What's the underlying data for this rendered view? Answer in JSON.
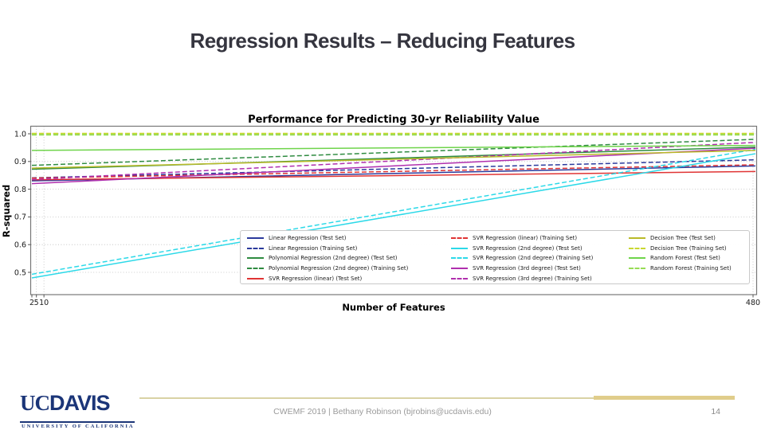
{
  "slide": {
    "title": "Regression Results – Reducing Features",
    "footer": {
      "text": "CWEMF 2019  |  Bethany Robinson (bjrobins@ucdavis.edu)",
      "page_number": "14"
    },
    "logo": {
      "uc": "UC",
      "davis": "DAVIS",
      "subtitle": "UNIVERSITY OF CALIFORNIA",
      "navy": "#1b3578"
    },
    "accent_gold_thin": "#d9d2a4",
    "accent_gold_thick": "#e0cd8b"
  },
  "chart_data": {
    "type": "line",
    "title": "Performance for Predicting 30-yr Reliability Value",
    "xlabel": "Number of Features",
    "ylabel": "R-squared",
    "xlim": [
      2,
      480
    ],
    "ylim": [
      0.45,
      1.03
    ],
    "xticks": [
      2,
      5,
      10,
      480
    ],
    "yticks": [
      0.5,
      0.6,
      0.7,
      0.8,
      0.9,
      1.0
    ],
    "grid": true,
    "legend_position": "lower center, 3 columns",
    "legend_columns": [
      5,
      5,
      4
    ],
    "x": [
      2,
      480
    ],
    "series": [
      {
        "name": "Linear Regression (Test Set)",
        "color": "#2b3a9c",
        "linestyle": "solid",
        "values": [
          0.83,
          0.884
        ]
      },
      {
        "name": "Linear Regression (Training Set)",
        "color": "#2b3a9c",
        "linestyle": "dashed",
        "values": [
          0.841,
          0.906
        ]
      },
      {
        "name": "Polynomial Regression (2nd degree) (Test Set)",
        "color": "#2e8b40",
        "linestyle": "solid",
        "values": [
          0.872,
          0.952
        ]
      },
      {
        "name": "Polynomial Regression (2nd degree) (Training Set)",
        "color": "#2e8b40",
        "linestyle": "dashed",
        "values": [
          0.886,
          0.98
        ]
      },
      {
        "name": "SVR Regression (linear) (Test Set)",
        "color": "#e03434",
        "linestyle": "solid",
        "values": [
          0.834,
          0.864
        ]
      },
      {
        "name": "SVR Regression (linear) (Training Set)",
        "color": "#e03434",
        "linestyle": "dashed",
        "values": [
          0.84,
          0.888
        ]
      },
      {
        "name": "SVR Regression (2nd degree) (Test Set)",
        "color": "#2cd9e8",
        "linestyle": "solid",
        "values": [
          0.48,
          0.928
        ]
      },
      {
        "name": "SVR Regression (2nd degree) (Training Set)",
        "color": "#2cd9e8",
        "linestyle": "dashed",
        "values": [
          0.493,
          0.944
        ]
      },
      {
        "name": "SVR Regression (3rd degree) (Test Set)",
        "color": "#b02fae",
        "linestyle": "solid",
        "values": [
          0.82,
          0.948
        ]
      },
      {
        "name": "SVR Regression (3rd degree) (Training Set)",
        "color": "#b02fae",
        "linestyle": "dashed",
        "values": [
          0.835,
          0.969
        ]
      },
      {
        "name": "Decision Tree (Test Set)",
        "color": "#b9ba28",
        "linestyle": "solid",
        "values": [
          0.876,
          0.94
        ]
      },
      {
        "name": "Decision Tree (Training Set)",
        "color": "#c9d831",
        "linestyle": "dashed",
        "lw": 2.4,
        "values": [
          1.0,
          1.0
        ]
      },
      {
        "name": "Random Forest (Test Set)",
        "color": "#6fd44b",
        "linestyle": "solid",
        "values": [
          0.94,
          0.958
        ]
      },
      {
        "name": "Random Forest (Training Set)",
        "color": "#98dc55",
        "linestyle": "dashed",
        "lw": 2.0,
        "values": [
          0.9965,
          0.9965
        ]
      }
    ]
  }
}
